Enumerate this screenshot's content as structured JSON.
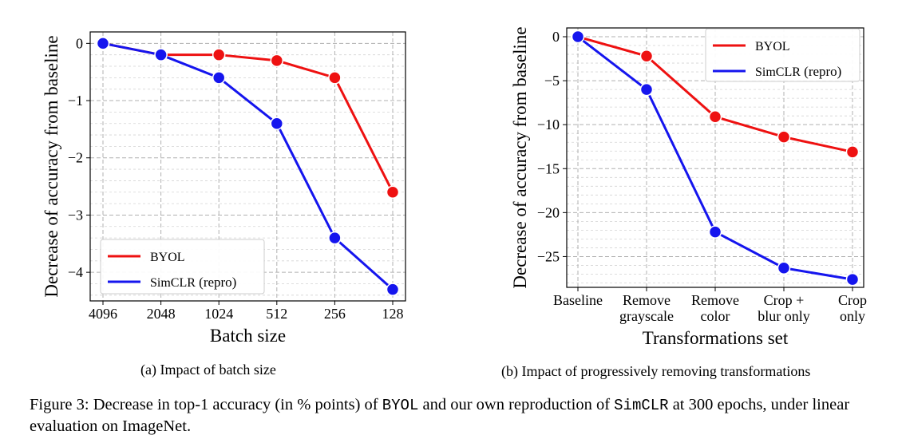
{
  "chart_data": [
    {
      "type": "line",
      "categories": [
        "4096",
        "2048",
        "1024",
        "512",
        "256",
        "128"
      ],
      "series": [
        {
          "name": "BYOL",
          "color": "#ee1111",
          "values": [
            0,
            -0.2,
            -0.2,
            -0.3,
            -0.6,
            -2.6
          ]
        },
        {
          "name": "SimCLR (repro)",
          "color": "#1515ee",
          "values": [
            0,
            -0.2,
            -0.6,
            -1.4,
            -3.4,
            -4.3
          ]
        }
      ],
      "xlabel": "Batch size",
      "ylabel": "Decrease of accuracy from baseline",
      "ylim": [
        -4.5,
        0.2
      ],
      "yticks": [
        0,
        -1,
        -2,
        -3,
        -4
      ],
      "ytick_labels": [
        "0",
        "−1",
        "−2",
        "−3",
        "−4"
      ],
      "grid": true,
      "legend_position": "bottom-left",
      "caption": "(a) Impact of batch size"
    },
    {
      "type": "line",
      "categories": [
        [
          "Baseline"
        ],
        [
          "Remove",
          "grayscale"
        ],
        [
          "Remove",
          "color"
        ],
        [
          "Crop +",
          "blur only"
        ],
        [
          "Crop",
          "only"
        ]
      ],
      "series": [
        {
          "name": "BYOL",
          "color": "#ee1111",
          "values": [
            0,
            -2.2,
            -9.1,
            -11.4,
            -13.1
          ]
        },
        {
          "name": "SimCLR (repro)",
          "color": "#1515ee",
          "values": [
            0,
            -6.0,
            -22.2,
            -26.3,
            -27.6
          ]
        }
      ],
      "xlabel": "Transformations set",
      "ylabel": "Decrease of accuracy from baseline",
      "ylim": [
        -28.5,
        1.0
      ],
      "yticks": [
        0,
        -5,
        -10,
        -15,
        -20,
        -25
      ],
      "ytick_labels": [
        "0",
        "−5",
        "−10",
        "−15",
        "−20",
        "−25"
      ],
      "grid": true,
      "legend_position": "top-right",
      "caption": "(b) Impact of progressively removing transformations"
    }
  ],
  "figure_caption": {
    "prefix": "Figure 3: Decrease in top-1 accuracy (in % points) of ",
    "byol": "BYOL",
    "middle": " and our own reproduction of ",
    "simclr": "SimCLR",
    "suffix": " at 300 epochs, under linear evaluation on ImageNet."
  }
}
